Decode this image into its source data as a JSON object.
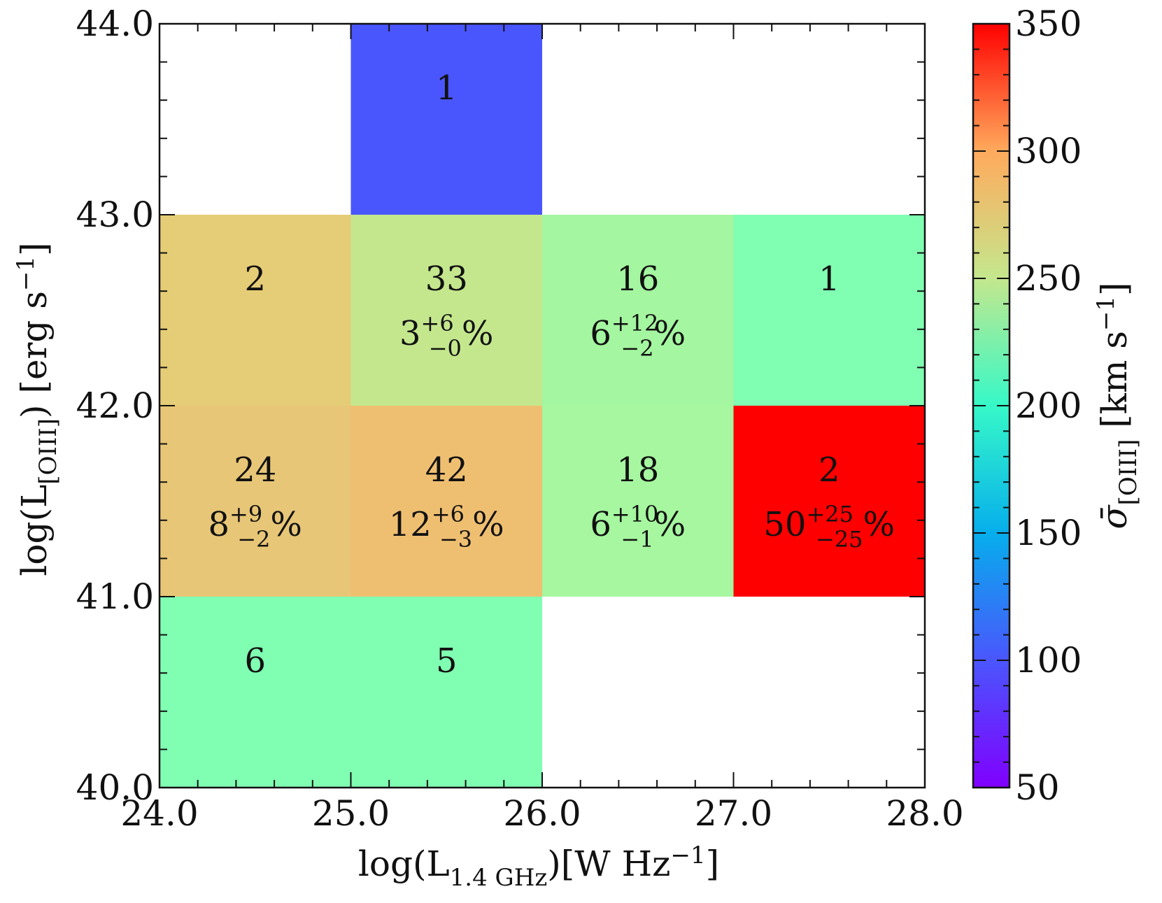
{
  "chart_data": {
    "type": "heatmap",
    "xlabel": "log(L1.4 GHz)[W Hz−1]",
    "ylabel": "log(L[OIII]) [erg s−1]",
    "colorbar_label": "σ̄[OIII] [km s−1]",
    "xlim": [
      24,
      28
    ],
    "ylim": [
      40,
      44
    ],
    "x_ticks": [
      "24.0",
      "25.0",
      "26.0",
      "27.0",
      "28.0"
    ],
    "y_ticks": [
      "40.0",
      "41.0",
      "42.0",
      "43.0",
      "44.0"
    ],
    "colorbar_range": [
      50,
      350
    ],
    "colorbar_ticks": [
      "50",
      "100",
      "150",
      "200",
      "250",
      "300",
      "350"
    ],
    "colormap": "rainbow",
    "cells": [
      {
        "x": [
          25,
          26
        ],
        "y": [
          43,
          44
        ],
        "count": "1",
        "sigma": 90,
        "color": "#4a56fd"
      },
      {
        "x": [
          24,
          25
        ],
        "y": [
          42,
          43
        ],
        "count": "2",
        "sigma": 255,
        "color": "#e5cc76"
      },
      {
        "x": [
          25,
          26
        ],
        "y": [
          42,
          43
        ],
        "count": "33",
        "sigma": 230,
        "percent": {
          "value": "3",
          "plus": "+6",
          "minus": "−0"
        },
        "color": "#c4e78d"
      },
      {
        "x": [
          26,
          27
        ],
        "y": [
          42,
          43
        ],
        "count": "16",
        "sigma": 200,
        "percent": {
          "value": "6",
          "plus": "+12",
          "minus": "−2"
        },
        "color": "#a4f6a0"
      },
      {
        "x": [
          27,
          28
        ],
        "y": [
          42,
          43
        ],
        "count": "1",
        "sigma": 190,
        "color": "#80feb2"
      },
      {
        "x": [
          24,
          25
        ],
        "y": [
          41,
          42
        ],
        "count": "24",
        "sigma": 265,
        "percent": {
          "value": "8",
          "plus": "+9",
          "minus": "−2"
        },
        "color": "#e7c677"
      },
      {
        "x": [
          25,
          26
        ],
        "y": [
          41,
          42
        ],
        "count": "42",
        "sigma": 275,
        "percent": {
          "value": "12",
          "plus": "+6",
          "minus": "−3"
        },
        "color": "#efbf71"
      },
      {
        "x": [
          26,
          27
        ],
        "y": [
          41,
          42
        ],
        "count": "18",
        "sigma": 205,
        "percent": {
          "value": "6",
          "plus": "+10",
          "minus": "−1"
        },
        "color": "#a6f7a0"
      },
      {
        "x": [
          27,
          28
        ],
        "y": [
          41,
          42
        ],
        "count": "2",
        "sigma": 350,
        "percent": {
          "value": "50",
          "plus": "+25",
          "minus": "−25"
        },
        "color": "#ff0000"
      },
      {
        "x": [
          24,
          25
        ],
        "y": [
          40,
          41
        ],
        "count": "6",
        "sigma": 190,
        "color": "#80feb2"
      },
      {
        "x": [
          25,
          26
        ],
        "y": [
          40,
          41
        ],
        "count": "5",
        "sigma": 190,
        "color": "#80feb2"
      }
    ]
  }
}
